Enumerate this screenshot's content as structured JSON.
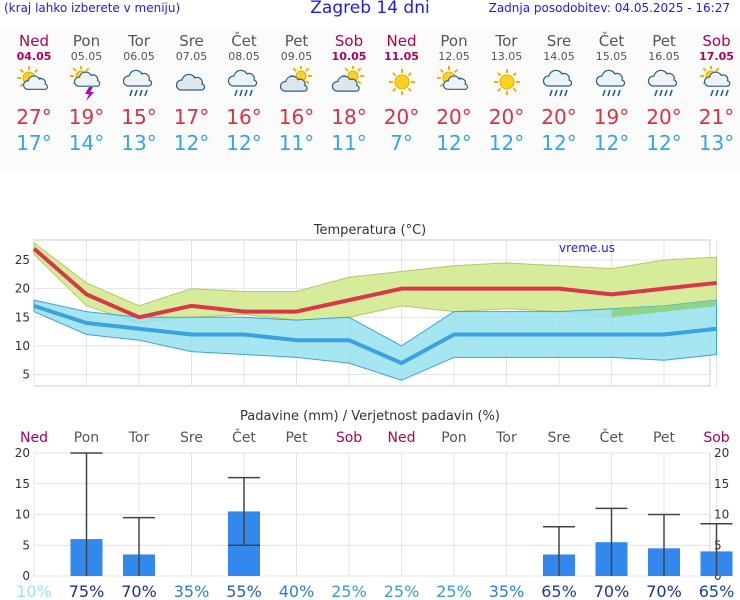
{
  "header": {
    "left_note": "(kraj lahko izberete v meniju)",
    "title": "Zagreb 14 dni",
    "updated": "Zadnja posodobitev: 04.05.2025 - 16:27"
  },
  "days": [
    {
      "name": "Ned",
      "date": "04.05",
      "weekend": true,
      "icon": "sun-cloud-icon",
      "tmax": "27°",
      "tmin": "17°"
    },
    {
      "name": "Pon",
      "date": "05.05",
      "weekend": false,
      "icon": "thunderstorm-icon",
      "tmax": "19°",
      "tmin": "14°"
    },
    {
      "name": "Tor",
      "date": "06.05",
      "weekend": false,
      "icon": "rain-cloud-icon",
      "tmax": "15°",
      "tmin": "13°"
    },
    {
      "name": "Sre",
      "date": "07.05",
      "weekend": false,
      "icon": "cloud-icon",
      "tmax": "17°",
      "tmin": "12°"
    },
    {
      "name": "Čet",
      "date": "08.05",
      "weekend": false,
      "icon": "rain-cloud-icon",
      "tmax": "16°",
      "tmin": "12°"
    },
    {
      "name": "Pet",
      "date": "09.05",
      "weekend": false,
      "icon": "partly-cloudy-icon",
      "tmax": "16°",
      "tmin": "11°"
    },
    {
      "name": "Sob",
      "date": "10.05",
      "weekend": true,
      "icon": "partly-cloudy-icon",
      "tmax": "18°",
      "tmin": "11°"
    },
    {
      "name": "Ned",
      "date": "11.05",
      "weekend": true,
      "icon": "sun-icon",
      "tmax": "20°",
      "tmin": "7°"
    },
    {
      "name": "Pon",
      "date": "12.05",
      "weekend": false,
      "icon": "sun-cloud-icon",
      "tmax": "20°",
      "tmin": "12°"
    },
    {
      "name": "Tor",
      "date": "13.05",
      "weekend": false,
      "icon": "sun-icon",
      "tmax": "20°",
      "tmin": "12°"
    },
    {
      "name": "Sre",
      "date": "14.05",
      "weekend": false,
      "icon": "rain-cloud-icon",
      "tmax": "20°",
      "tmin": "12°"
    },
    {
      "name": "Čet",
      "date": "15.05",
      "weekend": false,
      "icon": "rain-cloud-icon",
      "tmax": "19°",
      "tmin": "12°"
    },
    {
      "name": "Pet",
      "date": "16.05",
      "weekend": false,
      "icon": "rain-cloud-icon",
      "tmax": "20°",
      "tmin": "12°"
    },
    {
      "name": "Sob",
      "date": "17.05",
      "weekend": true,
      "icon": "sun-rain-icon",
      "tmax": "21°",
      "tmin": "13°"
    }
  ],
  "colors": {
    "max_line": "#d83848",
    "min_line": "#3aa2e2",
    "max_band": "#d6ec9a",
    "min_band": "#96e2ee",
    "overlap_band": "#8ed486",
    "bar": "#3388ee",
    "error_bar": "#444444",
    "weekend": "#b0005a"
  },
  "chart_data": [
    {
      "type": "line",
      "title": "Temperatura (°C)",
      "watermark": "vreme.us",
      "x": [
        "04.05",
        "05.05",
        "06.05",
        "07.05",
        "08.05",
        "09.05",
        "10.05",
        "11.05",
        "12.05",
        "13.05",
        "14.05",
        "15.05",
        "16.05",
        "17.05"
      ],
      "ylim": [
        3,
        28.5
      ],
      "yticks": [
        5,
        10,
        15,
        20,
        25
      ],
      "grid": true,
      "series": [
        {
          "values": [
            27,
            19,
            15,
            17,
            16,
            16,
            18,
            20,
            20,
            20,
            20,
            19,
            20,
            21
          ]
        },
        {
          "values": [
            17,
            14,
            13,
            12,
            12,
            11,
            11,
            7,
            12,
            12,
            12,
            12,
            12,
            13
          ]
        }
      ],
      "bands": {
        "max_upper": [
          28,
          21,
          17,
          20,
          19.5,
          19.5,
          22,
          23,
          24,
          24.5,
          24,
          23.5,
          25,
          25.5
        ],
        "max_lower": [
          26,
          17,
          14,
          15,
          15.5,
          14.5,
          15,
          17,
          16,
          16.5,
          16,
          15,
          16,
          17
        ],
        "min_upper": [
          18,
          16,
          15,
          15,
          15,
          14.5,
          15,
          10,
          16,
          16,
          16,
          16.5,
          17,
          18
        ],
        "min_lower": [
          16,
          12,
          11,
          9,
          8.5,
          8,
          7,
          4,
          8,
          8,
          8,
          8,
          7.5,
          8.5
        ]
      }
    },
    {
      "type": "bar",
      "title": "Padavine (mm) / Verjetnost padavin (%)",
      "categories": [
        "Ned",
        "Pon",
        "Tor",
        "Sre",
        "Čet",
        "Pet",
        "Sob",
        "Ned",
        "Pon",
        "Tor",
        "Sre",
        "Čet",
        "Pet",
        "Sob"
      ],
      "weekend": [
        true,
        false,
        false,
        false,
        false,
        false,
        true,
        true,
        false,
        false,
        false,
        false,
        false,
        true
      ],
      "values": [
        0,
        6,
        3.5,
        0,
        10.5,
        0,
        0,
        0,
        0,
        0,
        3.5,
        5.5,
        4.5,
        4
      ],
      "error_low": [
        null,
        0,
        0,
        null,
        5,
        null,
        null,
        null,
        null,
        null,
        0,
        0,
        0,
        0
      ],
      "error_high": [
        null,
        20,
        9.5,
        null,
        16,
        null,
        null,
        null,
        null,
        null,
        8,
        11,
        10,
        8.5
      ],
      "probability": [
        "10%",
        "75%",
        "70%",
        "35%",
        "55%",
        "40%",
        "25%",
        "25%",
        "25%",
        "35%",
        "65%",
        "70%",
        "70%",
        "65%"
      ],
      "probability_color": [
        "#9fe0f8",
        "#1a2f9a",
        "#1a2f9a",
        "#2a7fd0",
        "#2a60b8",
        "#2a7fd0",
        "#3a9ae0",
        "#3a9ae0",
        "#3a9ae0",
        "#2a7fd0",
        "#1a3fa8",
        "#1a2f9a",
        "#1a2f9a",
        "#1a3fa8"
      ],
      "ylim": [
        0,
        20
      ],
      "yticks": [
        0,
        5,
        10,
        15,
        20
      ],
      "grid": true
    }
  ]
}
